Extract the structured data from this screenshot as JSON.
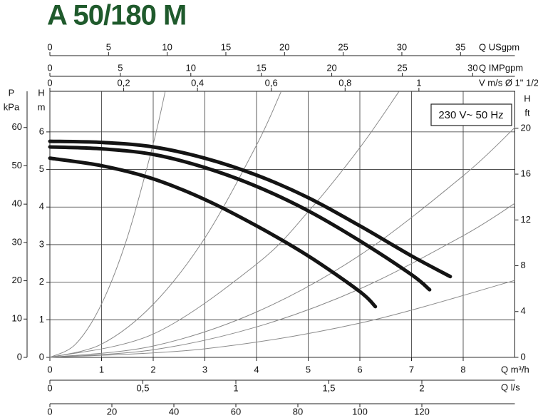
{
  "chart_data": {
    "type": "line",
    "title": "A 50/180 M",
    "xlabel": "Q m³/h",
    "ylabel": [
      "H",
      "m"
    ],
    "xlim": [
      0,
      9
    ],
    "ylim": [
      0,
      7.08
    ],
    "xticks": [
      0,
      1,
      2,
      3,
      4,
      5,
      6,
      7,
      8
    ],
    "yticks": [
      0,
      1,
      2,
      3,
      4,
      5,
      6
    ],
    "grid": true,
    "annotation": "230 V~ 50 Hz",
    "series": [
      {
        "color": "#141414",
        "width": 5,
        "x": [
          0,
          1,
          2,
          3,
          4,
          5,
          6,
          7,
          7.75
        ],
        "values": [
          5.75,
          5.72,
          5.6,
          5.3,
          4.85,
          4.25,
          3.5,
          2.7,
          2.15
        ]
      },
      {
        "color": "#141414",
        "width": 5,
        "x": [
          0,
          1,
          2,
          3,
          4,
          5,
          6,
          7,
          7.35
        ],
        "values": [
          5.6,
          5.55,
          5.4,
          5.05,
          4.55,
          3.9,
          3.1,
          2.2,
          1.8
        ]
      },
      {
        "color": "#141414",
        "width": 5,
        "x": [
          0,
          1,
          2,
          3,
          4,
          5,
          6,
          6.3
        ],
        "values": [
          5.3,
          5.1,
          4.75,
          4.2,
          3.5,
          2.7,
          1.75,
          1.35
        ]
      },
      {
        "color": "#8a8a8a",
        "width": 1,
        "x": [
          0,
          0.5,
          1,
          1.5,
          2,
          2.23
        ],
        "values": [
          0,
          0.355,
          1.42,
          3.195,
          5.68,
          7.06
        ]
      },
      {
        "color": "#8a8a8a",
        "width": 1,
        "x": [
          0,
          1,
          2,
          3,
          4,
          4.47
        ],
        "values": [
          0,
          0.353,
          1.412,
          3.177,
          5.648,
          7.053
        ]
      },
      {
        "color": "#8a8a8a",
        "width": 1,
        "x": [
          0,
          2,
          4,
          5,
          6,
          6.75
        ],
        "values": [
          0,
          0.62,
          2.48,
          3.875,
          5.58,
          7.06
        ]
      },
      {
        "color": "#8a8a8a",
        "width": 1,
        "x": [
          0,
          2,
          4,
          6,
          8,
          9
        ],
        "values": [
          0,
          0.302,
          1.208,
          2.718,
          4.832,
          6.116
        ]
      },
      {
        "color": "#8a8a8a",
        "width": 1,
        "x": [
          0,
          2,
          4,
          6,
          8,
          9
        ],
        "values": [
          0,
          0.202,
          0.81,
          1.822,
          3.238,
          4.099
        ]
      },
      {
        "color": "#8a8a8a",
        "width": 1,
        "x": [
          0,
          3,
          6,
          9
        ],
        "values": [
          0,
          0.228,
          0.911,
          2.049
        ]
      }
    ],
    "secondary_axes": [
      {
        "side": "top",
        "label": "Q USgpm",
        "lim": [
          0,
          39.63
        ],
        "ticks": [
          0,
          5,
          10,
          15,
          20,
          25,
          30,
          35
        ]
      },
      {
        "side": "top",
        "label": "Q IMPgpm",
        "lim": [
          0,
          32.99
        ],
        "ticks": [
          0,
          5,
          10,
          15,
          20,
          25,
          30
        ]
      },
      {
        "side": "top",
        "label": "V m/s Ø 1\" 1/2",
        "lim": [
          0,
          1.26
        ],
        "ticks": [
          0,
          {
            "value": 0.2,
            "label": "0,2"
          },
          {
            "value": 0.4,
            "label": "0,4"
          },
          {
            "value": 0.6,
            "label": "0,6"
          },
          {
            "value": 0.8,
            "label": "0,8"
          },
          1
        ]
      },
      {
        "side": "bottom",
        "label": "Q l/s",
        "lim": [
          0,
          2.5
        ],
        "ticks": [
          0,
          {
            "value": 0.5,
            "label": "0,5"
          },
          1,
          {
            "value": 1.5,
            "label": "1,5"
          },
          2
        ]
      },
      {
        "side": "bottom",
        "lim": [
          0,
          150
        ],
        "ticks": [
          0,
          20,
          40,
          60,
          80,
          100,
          120
        ]
      },
      {
        "side": "left",
        "label": [
          "P",
          "kPa"
        ],
        "lim": [
          0,
          69.45
        ],
        "ticks": [
          0,
          10,
          20,
          30,
          40,
          50,
          60
        ]
      },
      {
        "side": "right",
        "label": [
          "H",
          "ft"
        ],
        "lim": [
          0,
          23.23
        ],
        "ticks": [
          0,
          4,
          8,
          12,
          16,
          20
        ]
      }
    ]
  }
}
